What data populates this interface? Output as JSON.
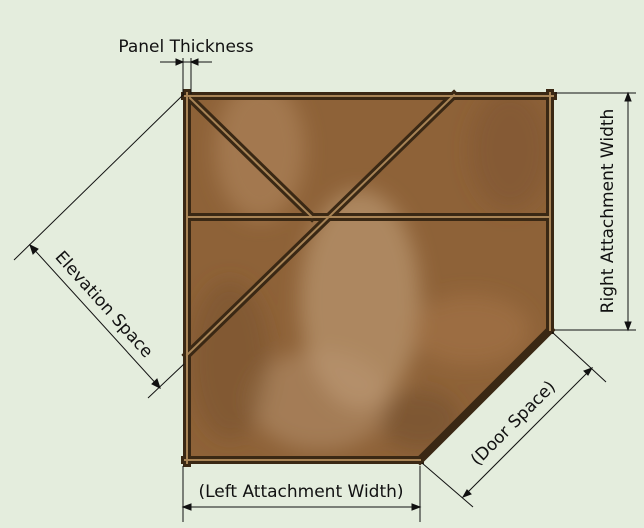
{
  "diagram": {
    "labels": {
      "panel_thickness": "Panel Thickness",
      "elevation_space": "Elevation Space",
      "right_attachment_width": "Right Attachment Width",
      "door_space": "(Door Space)",
      "left_attachment_width": "(Left Attachment Width)"
    },
    "colors": {
      "background": "#e4eddd",
      "panel_fill": "#8e6238",
      "frame": "#3a2814",
      "frame_highlight": "#a88456",
      "dimension_line": "#111111"
    }
  }
}
